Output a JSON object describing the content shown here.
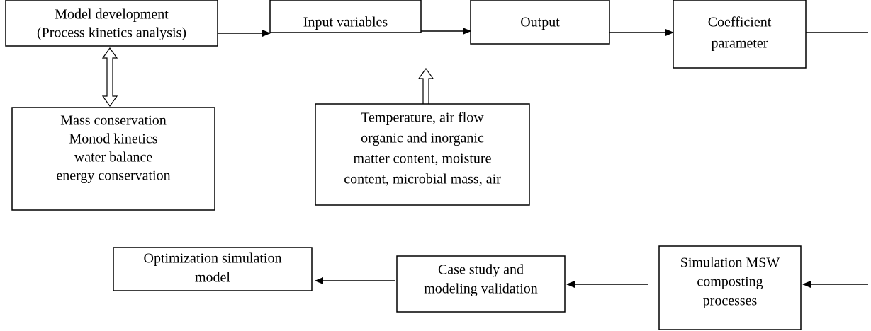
{
  "nodes": [
    {
      "lines": [
        "Model development",
        "(Process kinetics analysis)"
      ]
    },
    {
      "lines": [
        "Input variables"
      ]
    },
    {
      "lines": [
        "Output"
      ]
    },
    {
      "lines": [
        "Coefficient",
        "parameter"
      ]
    },
    {
      "lines": [
        "Mass conservation",
        "Monod kinetics",
        "water balance",
        "energy conservation"
      ]
    },
    {
      "lines": [
        "Temperature, air flow",
        "organic and inorganic",
        "matter content, moisture",
        "content, microbial mass, air"
      ]
    },
    {
      "lines": [
        "Optimization simulation",
        "model"
      ]
    },
    {
      "lines": [
        "Case study and",
        "modeling validation"
      ]
    },
    {
      "lines": [
        "Simulation MSW",
        "composting",
        "processes"
      ]
    }
  ]
}
